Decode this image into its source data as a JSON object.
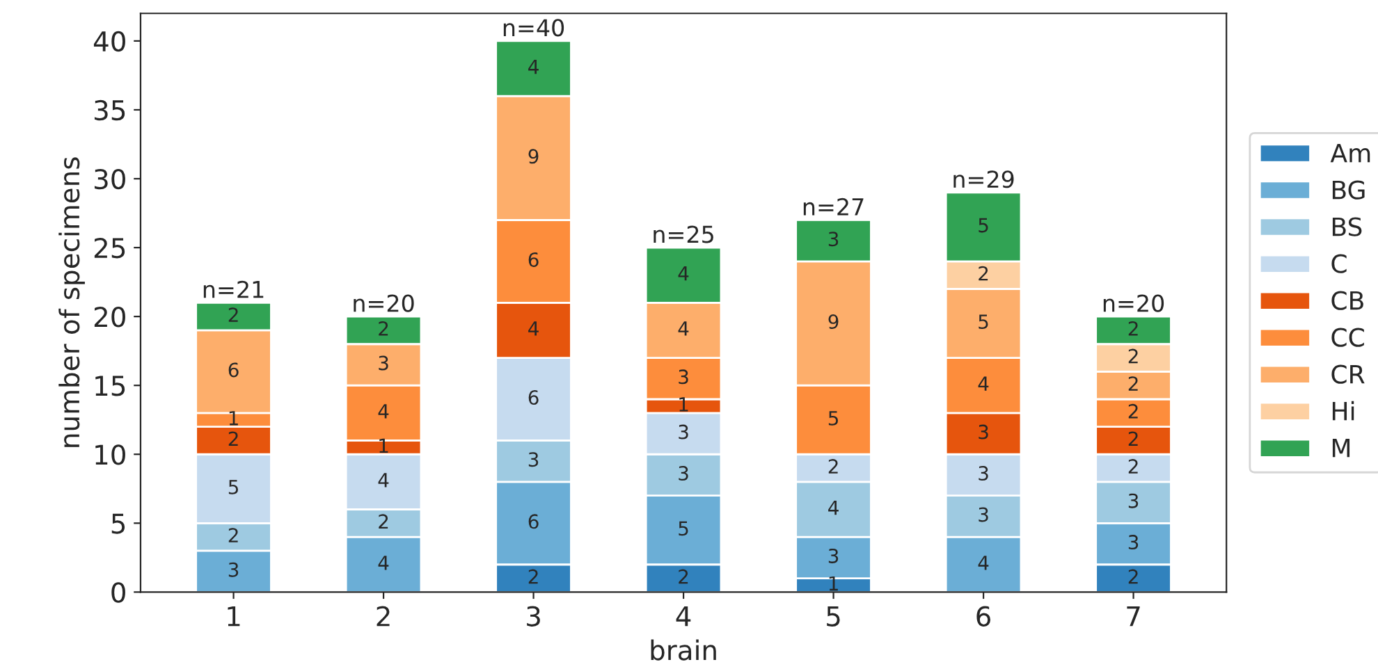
{
  "chart_data": {
    "type": "bar",
    "stacked": true,
    "xlabel": "brain",
    "ylabel": "number of specimens",
    "categories": [
      "1",
      "2",
      "3",
      "4",
      "5",
      "6",
      "7"
    ],
    "series": [
      {
        "name": "Am",
        "color": "#3182bd",
        "values": [
          null,
          null,
          2,
          2,
          1,
          null,
          2
        ]
      },
      {
        "name": "BG",
        "color": "#6baed6",
        "values": [
          3,
          4,
          6,
          5,
          3,
          4,
          3
        ]
      },
      {
        "name": "BS",
        "color": "#9ecae1",
        "values": [
          2,
          2,
          3,
          3,
          4,
          3,
          3
        ]
      },
      {
        "name": "C",
        "color": "#c6dbef",
        "values": [
          5,
          4,
          6,
          3,
          2,
          3,
          2
        ]
      },
      {
        "name": "CB",
        "color": "#e6550d",
        "values": [
          2,
          1,
          4,
          1,
          null,
          3,
          2
        ]
      },
      {
        "name": "CC",
        "color": "#fd8d3c",
        "values": [
          1,
          4,
          6,
          3,
          5,
          4,
          2
        ]
      },
      {
        "name": "CR",
        "color": "#fdae6b",
        "values": [
          6,
          3,
          9,
          4,
          9,
          5,
          2
        ]
      },
      {
        "name": "Hi",
        "color": "#fdd0a2",
        "values": [
          null,
          null,
          null,
          null,
          null,
          2,
          2
        ]
      },
      {
        "name": "M",
        "color": "#31a354",
        "values": [
          2,
          2,
          4,
          4,
          3,
          5,
          2
        ]
      }
    ],
    "data_labels": true,
    "totals": [
      "n=21",
      "n=20",
      "n=40",
      "n=25",
      "n=27",
      "n=29",
      "n=20"
    ],
    "ylim": [
      0,
      42
    ],
    "yticks": [
      0,
      5,
      10,
      15,
      20,
      25,
      30,
      35,
      40
    ],
    "legend": "right",
    "grid": false
  }
}
